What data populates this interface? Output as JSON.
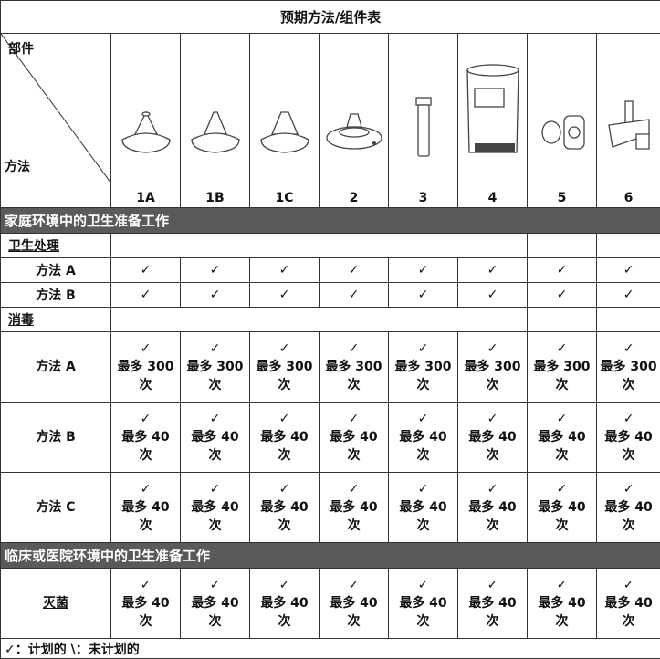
{
  "title": "预期方法/组件表",
  "header": {
    "parts_label": "部件",
    "methods_label": "方法",
    "components": [
      "1A",
      "1B",
      "1C",
      "2",
      "3",
      "4",
      "5",
      "6"
    ]
  },
  "sections": [
    {
      "title": "家庭环境中的卫生准备工作",
      "groups": [
        {
          "label": "卫生处理",
          "rows": [
            {
              "label": "方法 A",
              "cells": [
                [
                  "✓"
                ],
                [
                  "✓"
                ],
                [
                  "✓"
                ],
                [
                  "✓"
                ],
                [
                  "✓"
                ],
                [
                  "✓"
                ],
                [
                  "✓"
                ],
                [
                  "✓"
                ]
              ]
            },
            {
              "label": "方法 B",
              "cells": [
                [
                  "✓"
                ],
                [
                  "✓"
                ],
                [
                  "✓"
                ],
                [
                  "✓"
                ],
                [
                  "✓"
                ],
                [
                  "✓"
                ],
                [
                  "✓"
                ],
                [
                  "✓"
                ]
              ]
            }
          ]
        },
        {
          "label": "消毒",
          "rows": [
            {
              "label": "方法 A",
              "cells": [
                [
                  "✓",
                  "最多 300",
                  "次"
                ],
                [
                  "✓",
                  "最多 300",
                  "次"
                ],
                [
                  "✓",
                  "最多 300",
                  "次"
                ],
                [
                  "✓",
                  "最多 300",
                  "次"
                ],
                [
                  "✓",
                  "最多 300",
                  "次"
                ],
                [
                  "✓",
                  "最多 300",
                  "次"
                ],
                [
                  "✓",
                  "最多 300",
                  "次"
                ],
                [
                  "✓",
                  "最多 300",
                  "次"
                ]
              ]
            },
            {
              "label": "方法 B",
              "cells": [
                [
                  "✓",
                  "最多 40",
                  "次"
                ],
                [
                  "✓",
                  "最多 40",
                  "次"
                ],
                [
                  "✓",
                  "最多 40",
                  "次"
                ],
                [
                  "✓",
                  "最多 40",
                  "次"
                ],
                [
                  "✓",
                  "最多 40",
                  "次"
                ],
                [
                  "✓",
                  "最多 40",
                  "次"
                ],
                [
                  "✓",
                  "最多 40",
                  "次"
                ],
                [
                  "✓",
                  "最多 40",
                  "次"
                ]
              ]
            },
            {
              "label": "方法 C",
              "cells": [
                [
                  "✓",
                  "最多 40",
                  "次"
                ],
                [
                  "✓",
                  "最多 40",
                  "次"
                ],
                [
                  "✓",
                  "最多 40",
                  "次"
                ],
                [
                  "✓",
                  "最多 40",
                  "次"
                ],
                [
                  "✓",
                  "最多 40",
                  "次"
                ],
                [
                  "✓",
                  "最多 40",
                  "次"
                ],
                [
                  "✓",
                  "最多 40",
                  "次"
                ],
                [
                  "✓",
                  "最多 40",
                  "次"
                ]
              ]
            }
          ]
        }
      ]
    },
    {
      "title": "临床或医院环境中的卫生准备工作",
      "rows": [
        {
          "label": "灭菌",
          "cells": [
            [
              "✓",
              "最多 40",
              "次"
            ],
            [
              "✓",
              "最多 40",
              "次"
            ],
            [
              "✓",
              "最多 40",
              "次"
            ],
            [
              "✓",
              "最多 40",
              "次"
            ],
            [
              "✓",
              "最多 40",
              "次"
            ],
            [
              "✓",
              "最多 40",
              "次"
            ],
            [
              "✓",
              "最多 40",
              "次"
            ],
            [
              "✓",
              "最多 40",
              "次"
            ]
          ]
        }
      ]
    }
  ],
  "legend": "✓：计划的 \\：未计划的"
}
